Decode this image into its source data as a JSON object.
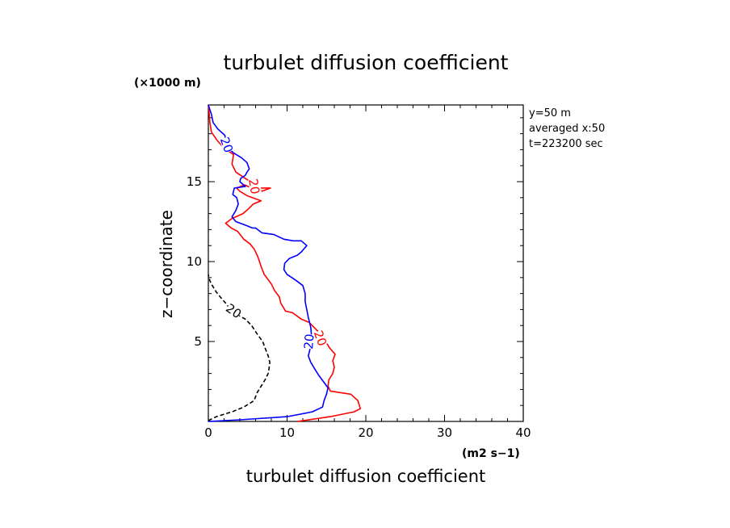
{
  "chart_data": {
    "type": "line",
    "title": "turbulet diffusion coefficient",
    "xlabel": "turbulet diffusion coefficient",
    "ylabel": "z−coordinate",
    "x_units": "(m2 s−1)",
    "y_units": "(×1000 m)",
    "xlim": [
      0,
      40
    ],
    "ylim": [
      0,
      19.8
    ],
    "x_ticks": [
      "0",
      "10",
      "20",
      "30",
      "40"
    ],
    "y_ticks": [
      "5",
      "10",
      "15"
    ],
    "info_lines": [
      "y=50  m",
      "averaged   x:50",
      "t=223200  sec"
    ],
    "series": [
      {
        "color": "#ff0000",
        "dash": "solid",
        "contour_label": "20",
        "contour_label_alt": "20",
        "points": [
          [
            11.3,
            0.0
          ],
          [
            15.5,
            0.3
          ],
          [
            18.5,
            0.6
          ],
          [
            19.3,
            0.8
          ],
          [
            19.0,
            1.3
          ],
          [
            18.1,
            1.7
          ],
          [
            15.5,
            1.9
          ],
          [
            15.2,
            2.2
          ],
          [
            15.3,
            2.6
          ],
          [
            15.8,
            3.0
          ],
          [
            16.0,
            3.4
          ],
          [
            15.8,
            3.8
          ],
          [
            16.1,
            4.2
          ],
          [
            15.4,
            4.6
          ],
          [
            14.9,
            5.0
          ],
          [
            14.4,
            5.4
          ],
          [
            13.4,
            5.9
          ],
          [
            12.8,
            6.2
          ],
          [
            11.8,
            6.4
          ],
          [
            10.7,
            6.8
          ],
          [
            9.8,
            6.9
          ],
          [
            9.2,
            7.4
          ],
          [
            9.0,
            7.8
          ],
          [
            8.4,
            8.2
          ],
          [
            8.0,
            8.6
          ],
          [
            7.1,
            9.2
          ],
          [
            6.7,
            9.7
          ],
          [
            6.3,
            10.3
          ],
          [
            5.8,
            10.8
          ],
          [
            5.3,
            11.1
          ],
          [
            4.5,
            11.4
          ],
          [
            3.7,
            11.9
          ],
          [
            2.9,
            12.1
          ],
          [
            2.2,
            12.4
          ],
          [
            3.0,
            12.7
          ],
          [
            4.4,
            13.0
          ],
          [
            5.1,
            13.3
          ],
          [
            5.7,
            13.6
          ],
          [
            6.7,
            13.8
          ],
          [
            5.0,
            14.1
          ],
          [
            4.0,
            14.4
          ],
          [
            3.6,
            14.6
          ],
          [
            4.6,
            14.8
          ],
          [
            5.5,
            14.6
          ],
          [
            7.9,
            14.6
          ],
          [
            6.8,
            14.4
          ],
          [
            6.0,
            14.8
          ],
          [
            4.7,
            15.2
          ],
          [
            3.5,
            15.6
          ],
          [
            3.0,
            16.1
          ],
          [
            3.2,
            16.7
          ],
          [
            2.0,
            17.1
          ],
          [
            1.1,
            17.6
          ],
          [
            0.4,
            18.1
          ],
          [
            0.2,
            18.7
          ],
          [
            0.1,
            19.3
          ],
          [
            0.0,
            19.8
          ]
        ]
      },
      {
        "color": "#0000ff",
        "dash": "solid",
        "contour_label": "20",
        "contour_label_alt": "20",
        "points": [
          [
            0.0,
            0.0
          ],
          [
            4.0,
            0.1
          ],
          [
            10.0,
            0.3
          ],
          [
            13.2,
            0.6
          ],
          [
            14.5,
            0.9
          ],
          [
            14.7,
            1.3
          ],
          [
            15.0,
            1.7
          ],
          [
            15.2,
            2.1
          ],
          [
            14.6,
            2.5
          ],
          [
            14.0,
            2.9
          ],
          [
            13.5,
            3.3
          ],
          [
            13.0,
            3.7
          ],
          [
            12.7,
            4.1
          ],
          [
            12.9,
            4.5
          ],
          [
            12.9,
            4.9
          ],
          [
            13.1,
            5.4
          ],
          [
            13.0,
            5.9
          ],
          [
            12.7,
            6.5
          ],
          [
            12.5,
            7.0
          ],
          [
            12.3,
            7.5
          ],
          [
            12.3,
            8.0
          ],
          [
            12.0,
            8.5
          ],
          [
            11.2,
            8.8
          ],
          [
            10.6,
            9.0
          ],
          [
            10.0,
            9.2
          ],
          [
            9.6,
            9.5
          ],
          [
            9.7,
            9.9
          ],
          [
            10.3,
            10.2
          ],
          [
            11.3,
            10.4
          ],
          [
            11.8,
            10.6
          ],
          [
            12.5,
            11.0
          ],
          [
            11.8,
            11.3
          ],
          [
            10.8,
            11.3
          ],
          [
            9.6,
            11.4
          ],
          [
            8.3,
            11.7
          ],
          [
            6.8,
            11.8
          ],
          [
            6.0,
            12.1
          ],
          [
            5.6,
            12.1
          ],
          [
            4.6,
            12.3
          ],
          [
            3.5,
            12.5
          ],
          [
            3.0,
            12.8
          ],
          [
            3.5,
            13.2
          ],
          [
            3.8,
            13.6
          ],
          [
            3.6,
            14.0
          ],
          [
            3.1,
            14.2
          ],
          [
            3.3,
            14.6
          ],
          [
            4.7,
            14.7
          ],
          [
            4.0,
            15.0
          ],
          [
            4.1,
            15.2
          ],
          [
            4.7,
            15.4
          ],
          [
            4.9,
            15.6
          ],
          [
            5.2,
            15.8
          ],
          [
            4.9,
            16.2
          ],
          [
            4.2,
            16.5
          ],
          [
            3.2,
            16.8
          ],
          [
            2.3,
            17.2
          ],
          [
            2.1,
            17.9
          ],
          [
            1.2,
            18.3
          ],
          [
            0.6,
            18.7
          ],
          [
            0.4,
            19.2
          ],
          [
            0.0,
            19.8
          ]
        ]
      },
      {
        "color": "#000000",
        "dash": "dashed",
        "contour_label": "20",
        "points": [
          [
            0.0,
            0.05
          ],
          [
            1.0,
            0.3
          ],
          [
            3.0,
            0.6
          ],
          [
            4.5,
            0.9
          ],
          [
            5.8,
            1.3
          ],
          [
            6.2,
            1.8
          ],
          [
            6.7,
            2.2
          ],
          [
            7.2,
            2.6
          ],
          [
            7.6,
            3.0
          ],
          [
            7.7,
            3.3
          ],
          [
            7.8,
            3.7
          ],
          [
            7.6,
            4.1
          ],
          [
            7.2,
            4.6
          ],
          [
            6.9,
            5.0
          ],
          [
            6.3,
            5.4
          ],
          [
            5.5,
            6.0
          ],
          [
            4.7,
            6.4
          ],
          [
            3.6,
            6.7
          ],
          [
            2.8,
            7.0
          ],
          [
            2.2,
            7.4
          ],
          [
            1.5,
            7.8
          ],
          [
            1.0,
            8.1
          ],
          [
            0.5,
            8.5
          ],
          [
            0.2,
            8.8
          ],
          [
            0.0,
            9.2
          ]
        ]
      }
    ]
  }
}
